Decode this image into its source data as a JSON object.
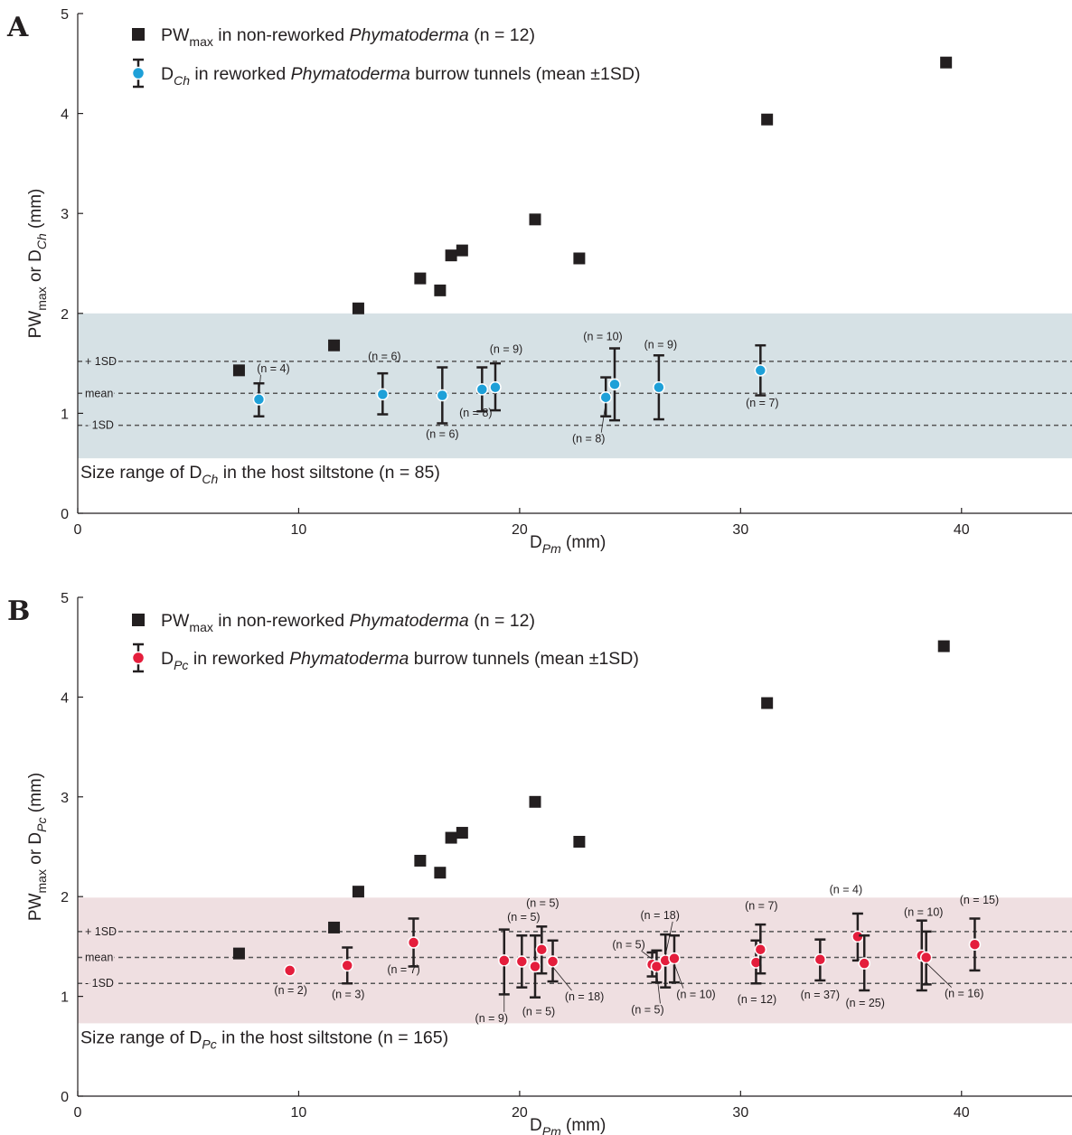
{
  "chart_data": [
    {
      "panel_label": "A",
      "type": "scatter",
      "xlim": [
        0,
        45
      ],
      "ylim": [
        0,
        5
      ],
      "xticks": [
        0,
        10,
        20,
        30,
        40
      ],
      "yticks": [
        0,
        1,
        2,
        3,
        4,
        5
      ],
      "xlabel": {
        "main": "D",
        "sub": "Pm",
        "rest": " (mm)"
      },
      "ylabel": {
        "p1": "PW",
        "s1": "max",
        "p2": " or D",
        "s2": "Ch",
        "p3": " (mm)"
      },
      "colors": {
        "band": "#d6e1e5",
        "point": "#1ea0d8",
        "square": "#231f20",
        "error": "#231f20"
      },
      "band": {
        "y": [
          0.55,
          2.0
        ],
        "label": {
          "prefix": "Size range of D",
          "sub": "Ch",
          "suffix": " in the host siltstone (n = 85)"
        }
      },
      "reference_lines": [
        {
          "label": "+ 1SD",
          "y": 1.52
        },
        {
          "label": "mean",
          "y": 1.2
        },
        {
          "label": "- 1SD",
          "y": 0.88
        }
      ],
      "legend": [
        {
          "marker": "square",
          "t1": "PW",
          "sub": "max",
          "t2": "  in non-reworked ",
          "ital": "Phymatoderma",
          "t3": " (n = 12)"
        },
        {
          "marker": "circle-error",
          "t1": "D",
          "sub": "Ch",
          "t2": " in reworked ",
          "ital": "Phymatoderma",
          "t3": " burrow tunnels (mean ±1SD)"
        }
      ],
      "squares": [
        {
          "x": 7.3,
          "y": 1.43
        },
        {
          "x": 11.6,
          "y": 1.68
        },
        {
          "x": 12.7,
          "y": 2.05
        },
        {
          "x": 15.5,
          "y": 2.35
        },
        {
          "x": 16.4,
          "y": 2.23
        },
        {
          "x": 16.9,
          "y": 2.58
        },
        {
          "x": 17.4,
          "y": 2.63
        },
        {
          "x": 20.7,
          "y": 2.94
        },
        {
          "x": 22.7,
          "y": 2.55
        },
        {
          "x": 31.2,
          "y": 3.94
        },
        {
          "x": 39.3,
          "y": 4.51
        }
      ],
      "points": [
        {
          "x": 8.2,
          "y": 1.14,
          "lo": 0.97,
          "hi": 1.3,
          "label": "(n = 4)"
        },
        {
          "x": 13.8,
          "y": 1.19,
          "lo": 0.99,
          "hi": 1.4,
          "label": "(n = 6)"
        },
        {
          "x": 16.5,
          "y": 1.18,
          "lo": 0.9,
          "hi": 1.46,
          "label": "(n = 6)"
        },
        {
          "x": 18.3,
          "y": 1.24,
          "lo": 1.02,
          "hi": 1.46,
          "label": "(n = 8)"
        },
        {
          "x": 18.9,
          "y": 1.26,
          "lo": 1.03,
          "hi": 1.5,
          "label": "(n = 9)"
        },
        {
          "x": 23.9,
          "y": 1.16,
          "lo": 0.97,
          "hi": 1.36,
          "label": "(n = 8)"
        },
        {
          "x": 24.3,
          "y": 1.29,
          "lo": 0.93,
          "hi": 1.65,
          "label": "(n = 10)"
        },
        {
          "x": 26.3,
          "y": 1.26,
          "lo": 0.94,
          "hi": 1.58,
          "label": "(n = 9)"
        },
        {
          "x": 30.9,
          "y": 1.43,
          "lo": 1.18,
          "hi": 1.68,
          "label": "(n = 7)"
        }
      ]
    },
    {
      "panel_label": "B",
      "type": "scatter",
      "xlim": [
        0,
        45
      ],
      "ylim": [
        0,
        5
      ],
      "xticks": [
        0,
        10,
        20,
        30,
        40
      ],
      "yticks": [
        0,
        1,
        2,
        3,
        4,
        5
      ],
      "xlabel": {
        "main": "D",
        "sub": "Pm",
        "rest": " (mm)"
      },
      "ylabel": {
        "p1": "PW",
        "s1": "max",
        "p2": " or D",
        "s2": "Pc",
        "p3": " (mm)"
      },
      "colors": {
        "band": "#efdfe1",
        "point": "#e41e3c",
        "square": "#231f20",
        "error": "#231f20"
      },
      "band": {
        "y": [
          0.73,
          1.99
        ],
        "label": {
          "prefix": "Size range of D",
          "sub": "Pc",
          "suffix": " in the host siltstone (n = 165)"
        }
      },
      "reference_lines": [
        {
          "label": "+ 1SD",
          "y": 1.65
        },
        {
          "label": "mean",
          "y": 1.39
        },
        {
          "label": "- 1SD",
          "y": 1.13
        }
      ],
      "legend": [
        {
          "marker": "square",
          "t1": "PW",
          "sub": "max",
          "t2": "  in non-reworked ",
          "ital": "Phymatoderma",
          "t3": " (n = 12)"
        },
        {
          "marker": "circle-error",
          "t1": "D",
          "sub": "Pc",
          "t2": " in reworked ",
          "ital": "Phymatoderma",
          "t3": " burrow tunnels (mean ±1SD)"
        }
      ],
      "squares": [
        {
          "x": 7.3,
          "y": 1.43
        },
        {
          "x": 11.6,
          "y": 1.69
        },
        {
          "x": 12.7,
          "y": 2.05
        },
        {
          "x": 15.5,
          "y": 2.36
        },
        {
          "x": 16.4,
          "y": 2.24
        },
        {
          "x": 16.9,
          "y": 2.59
        },
        {
          "x": 17.4,
          "y": 2.64
        },
        {
          "x": 20.7,
          "y": 2.95
        },
        {
          "x": 22.7,
          "y": 2.55
        },
        {
          "x": 31.2,
          "y": 3.94
        },
        {
          "x": 39.2,
          "y": 4.51
        }
      ],
      "points": [
        {
          "x": 9.6,
          "y": 1.26,
          "label": "(n = 2)"
        },
        {
          "x": 12.2,
          "y": 1.31,
          "lo": 1.13,
          "hi": 1.49,
          "label": "(n = 3)"
        },
        {
          "x": 15.2,
          "y": 1.54,
          "lo": 1.3,
          "hi": 1.78,
          "label": "(n = 7)"
        },
        {
          "x": 19.3,
          "y": 1.36,
          "lo": 1.02,
          "hi": 1.67,
          "label": "(n = 9)"
        },
        {
          "x": 20.1,
          "y": 1.35,
          "lo": 1.09,
          "hi": 1.61,
          "label": "(n = 5)"
        },
        {
          "x": 20.7,
          "y": 1.3,
          "lo": 0.99,
          "hi": 1.61,
          "label": "(n = 5)"
        },
        {
          "x": 21.0,
          "y": 1.47,
          "lo": 1.23,
          "hi": 1.7,
          "label": "(n = 5)"
        },
        {
          "x": 21.5,
          "y": 1.35,
          "lo": 1.15,
          "hi": 1.56,
          "label": "(n = 18)"
        },
        {
          "x": 26.0,
          "y": 1.32,
          "lo": 1.2,
          "hi": 1.44,
          "label": "(n = 5)"
        },
        {
          "x": 26.2,
          "y": 1.3,
          "lo": 1.14,
          "hi": 1.46,
          "label": "(n = 5)"
        },
        {
          "x": 26.6,
          "y": 1.36,
          "lo": 1.09,
          "hi": 1.62,
          "label": "(n = 18)"
        },
        {
          "x": 27.0,
          "y": 1.38,
          "lo": 1.14,
          "hi": 1.61,
          "label": "(n = 10)"
        },
        {
          "x": 30.7,
          "y": 1.34,
          "lo": 1.13,
          "hi": 1.56,
          "label": "(n = 12)"
        },
        {
          "x": 30.9,
          "y": 1.47,
          "lo": 1.23,
          "hi": 1.72,
          "label": "(n = 7)"
        },
        {
          "x": 33.6,
          "y": 1.37,
          "lo": 1.16,
          "hi": 1.57,
          "label": "(n = 37)"
        },
        {
          "x": 35.3,
          "y": 1.6,
          "lo": 1.36,
          "hi": 1.83,
          "label": "(n = 4)"
        },
        {
          "x": 35.6,
          "y": 1.33,
          "lo": 1.06,
          "hi": 1.61,
          "label": "(n = 25)"
        },
        {
          "x": 38.2,
          "y": 1.41,
          "lo": 1.06,
          "hi": 1.76,
          "label": "(n = 10)"
        },
        {
          "x": 38.4,
          "y": 1.39,
          "lo": 1.12,
          "hi": 1.65,
          "label": "(n = 16)"
        },
        {
          "x": 40.6,
          "y": 1.52,
          "lo": 1.26,
          "hi": 1.78,
          "label": "(n = 15)"
        }
      ]
    }
  ]
}
